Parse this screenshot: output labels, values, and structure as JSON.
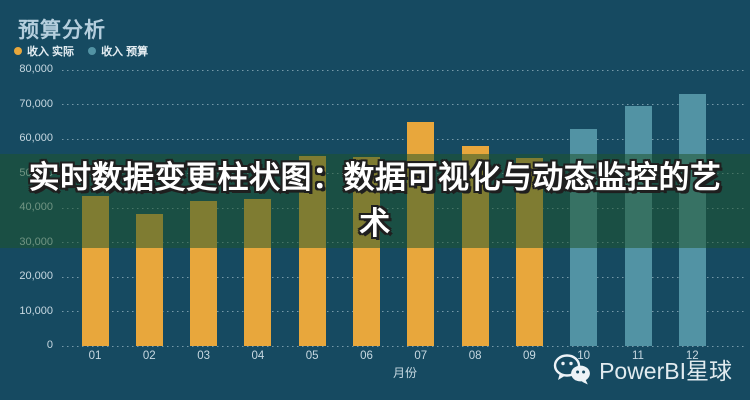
{
  "header": {
    "title": "预算分析",
    "legend": [
      {
        "label": "收入 实际",
        "color": "#e8a73c"
      },
      {
        "label": "收入 预算",
        "color": "#5293a4"
      }
    ]
  },
  "overlay_banner": {
    "text": "实时数据变更柱状图：数据可视化与动态监控的艺术"
  },
  "watermark": {
    "icon": "wechat-icon",
    "text": "PowerBI星球"
  },
  "chart_data": {
    "type": "bar",
    "title": "预算分析",
    "categories": [
      "01",
      "02",
      "03",
      "04",
      "05",
      "06",
      "07",
      "08",
      "09",
      "10",
      "11",
      "12"
    ],
    "series": [
      {
        "name": "收入 实际",
        "color": "#e8a73c",
        "values": [
          43500,
          38300,
          42000,
          42500,
          55000,
          54800,
          64800,
          58000,
          54500,
          null,
          null,
          null
        ]
      },
      {
        "name": "收入 预算",
        "color": "#5293a4",
        "values": [
          null,
          null,
          null,
          null,
          null,
          null,
          null,
          null,
          null,
          63000,
          69700,
          73000
        ]
      }
    ],
    "xlabel": "月份",
    "ylabel": "",
    "ylim": [
      0,
      80000
    ],
    "ytick_step": 10000,
    "ytick_labels": [
      "0",
      "10,000",
      "20,000",
      "30,000",
      "40,000",
      "50,000",
      "60,000",
      "70,000",
      "80,000"
    ],
    "grid": "horizontal-dotted",
    "legend_position": "top-left"
  }
}
